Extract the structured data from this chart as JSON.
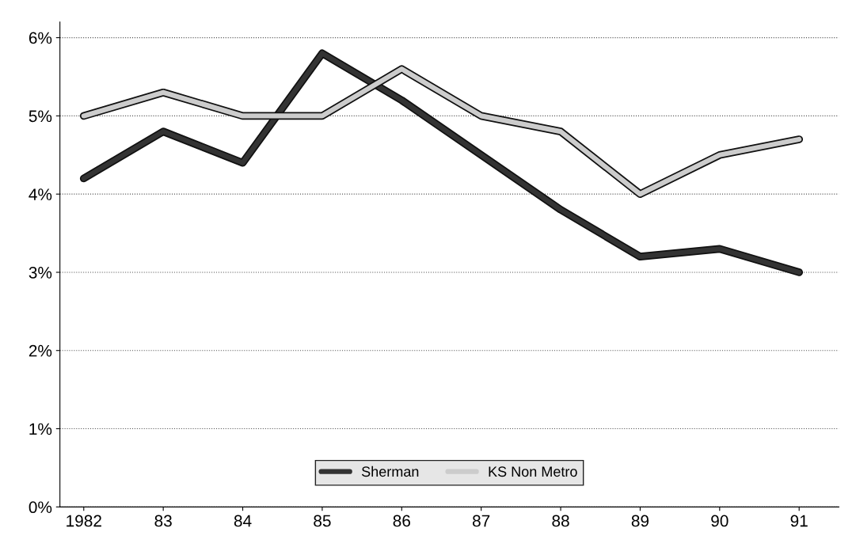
{
  "chart_data": {
    "type": "line",
    "categories": [
      "1982",
      "83",
      "84",
      "85",
      "86",
      "87",
      "88",
      "89",
      "90",
      "91"
    ],
    "series": [
      {
        "name": "Sherman",
        "color": "#333333",
        "values": [
          4.2,
          4.8,
          4.4,
          5.8,
          5.2,
          4.5,
          3.8,
          3.2,
          3.3,
          3.0
        ]
      },
      {
        "name": "KS Non Metro",
        "color": "#cccccc",
        "values": [
          5.0,
          5.3,
          5.0,
          5.0,
          5.6,
          5.0,
          4.8,
          4.0,
          4.5,
          4.7
        ]
      }
    ],
    "ylim": [
      0,
      6.2
    ],
    "yticks": [
      {
        "value": 0,
        "label": "0%"
      },
      {
        "value": 1,
        "label": "1%"
      },
      {
        "value": 2,
        "label": "2%"
      },
      {
        "value": 3,
        "label": "3%"
      },
      {
        "value": 4,
        "label": "4%"
      },
      {
        "value": 5,
        "label": "5%"
      },
      {
        "value": 6,
        "label": "6%"
      }
    ],
    "grid": "y",
    "legend": "bottom"
  }
}
